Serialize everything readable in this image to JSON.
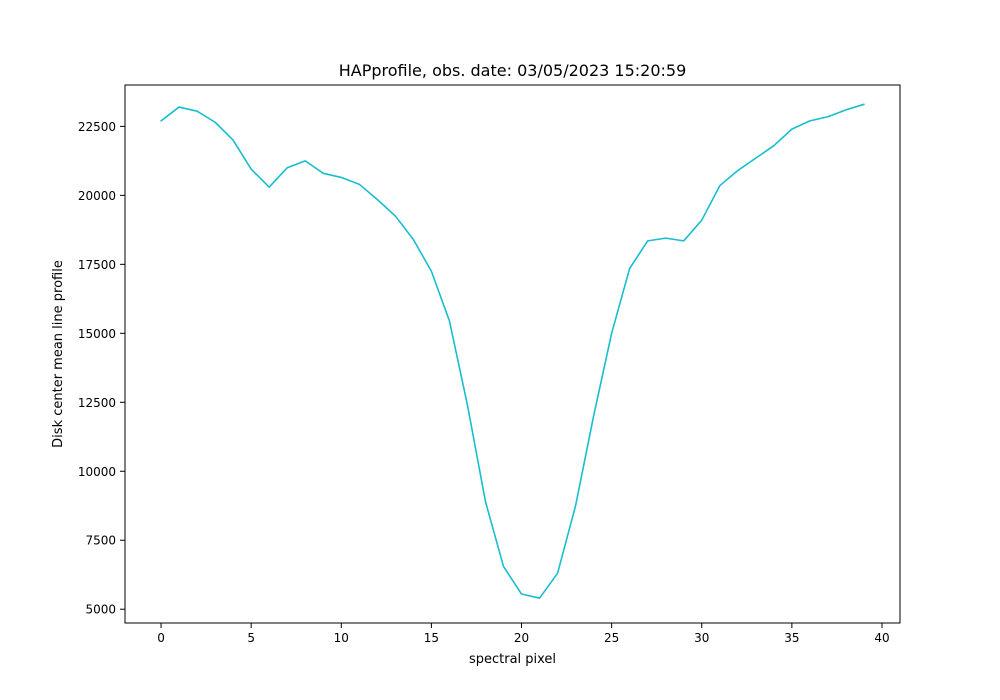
{
  "chart_data": {
    "type": "line",
    "title": "HAPprofile, obs. date: 03/05/2023 15:20:59",
    "xlabel": "spectral pixel",
    "ylabel": "Disk center mean line profile",
    "xlim": [
      -2,
      41
    ],
    "ylim": [
      4500,
      24000
    ],
    "xticks": [
      0,
      5,
      10,
      15,
      20,
      25,
      30,
      35,
      40
    ],
    "xtick_labels": [
      "0",
      "5",
      "10",
      "15",
      "20",
      "25",
      "30",
      "35",
      "40"
    ],
    "yticks": [
      5000,
      7500,
      10000,
      12500,
      15000,
      17500,
      20000,
      22500
    ],
    "ytick_labels": [
      "5000",
      "7500",
      "10000",
      "12500",
      "15000",
      "17500",
      "20000",
      "22500"
    ],
    "grid": false,
    "series": [
      {
        "color": "#17becf",
        "x": [
          0,
          1,
          2,
          3,
          4,
          5,
          6,
          7,
          8,
          9,
          10,
          11,
          12,
          13,
          14,
          15,
          16,
          17,
          18,
          19,
          20,
          21,
          22,
          23,
          24,
          25,
          26,
          27,
          28,
          29,
          30,
          31,
          32,
          33,
          34,
          35,
          36,
          37,
          38,
          39
        ],
        "y": [
          22700,
          23200,
          23050,
          22650,
          22000,
          20950,
          20300,
          21000,
          21250,
          20800,
          20650,
          20400,
          19850,
          19250,
          18400,
          17250,
          15450,
          12400,
          8900,
          6550,
          5550,
          5400,
          6300,
          8750,
          12000,
          15000,
          17350,
          18350,
          18450,
          18350,
          19100,
          20350,
          20900,
          21350,
          21800,
          22400,
          22700,
          22850,
          23100,
          23300
        ]
      }
    ]
  }
}
